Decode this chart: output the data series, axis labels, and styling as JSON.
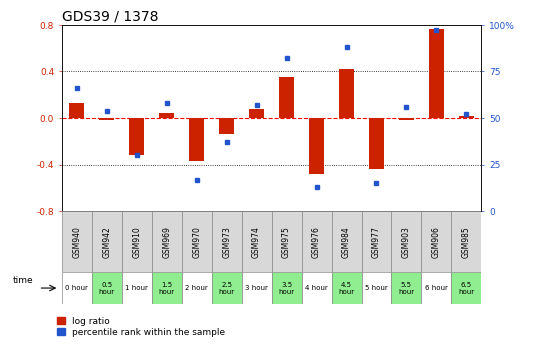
{
  "title": "GDS39 / 1378",
  "samples": [
    "GSM940",
    "GSM942",
    "GSM910",
    "GSM969",
    "GSM970",
    "GSM973",
    "GSM974",
    "GSM975",
    "GSM976",
    "GSM984",
    "GSM977",
    "GSM903",
    "GSM906",
    "GSM985"
  ],
  "time_labels": [
    "0 hour",
    "0.5\nhour",
    "1 hour",
    "1.5\nhour",
    "2 hour",
    "2.5\nhour",
    "3 hour",
    "3.5\nhour",
    "4 hour",
    "4.5\nhour",
    "5 hour",
    "5.5\nhour",
    "6 hour",
    "6.5\nhour"
  ],
  "time_bg": [
    "white",
    "lightgreen",
    "white",
    "lightgreen",
    "white",
    "lightgreen",
    "white",
    "lightgreen",
    "white",
    "lightgreen",
    "white",
    "lightgreen",
    "white",
    "lightgreen"
  ],
  "log_ratio": [
    0.13,
    -0.02,
    -0.32,
    0.04,
    -0.37,
    -0.14,
    0.08,
    0.35,
    -0.48,
    0.42,
    -0.44,
    -0.02,
    0.76,
    0.02
  ],
  "percentile": [
    66,
    54,
    30,
    58,
    17,
    37,
    57,
    82,
    13,
    88,
    15,
    56,
    97,
    52
  ],
  "ylim_left": [
    -0.8,
    0.8
  ],
  "ylim_right": [
    0,
    100
  ],
  "bar_color": "#cc2200",
  "dot_color": "#2255cc",
  "gsm_bg": "#d8d8d8",
  "white_bg": "#ffffff",
  "green_bg": "#90ee90",
  "title_fontsize": 10,
  "tick_fontsize": 6.5,
  "bar_width": 0.5,
  "left_yticks": [
    -0.8,
    -0.4,
    0.0,
    0.4,
    0.8
  ],
  "right_yticks": [
    0,
    25,
    50,
    75,
    100
  ],
  "right_yticklabels": [
    "0",
    "25",
    "50",
    "75",
    "100%"
  ]
}
